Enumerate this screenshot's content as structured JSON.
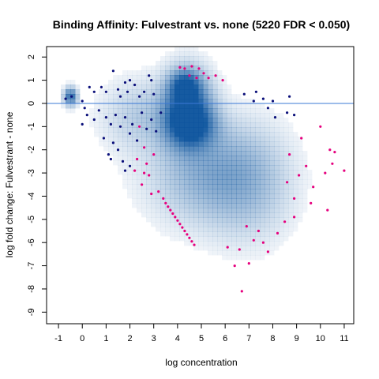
{
  "chart_data": {
    "type": "scatter",
    "title": "Binding Affinity: Fulvestrant vs. none (5220 FDR < 0.050)",
    "xlabel": "log concentration",
    "ylabel": "log fold change: Fulvestrant - none",
    "xlim": [
      -1.5,
      11.4
    ],
    "ylim": [
      -9.5,
      2.45
    ],
    "x_ticks": [
      "-1",
      "0",
      "1",
      "2",
      "3",
      "4",
      "5",
      "6",
      "7",
      "8",
      "9",
      "10",
      "11"
    ],
    "y_ticks": [
      "2",
      "1",
      "0",
      "-1",
      "-2",
      "-3",
      "-4",
      "-5",
      "-6",
      "-7",
      "-8",
      "-9"
    ],
    "reference_line_y": 0,
    "grid": false,
    "legend": "none",
    "colors": {
      "significant": "#e6007e",
      "non_significant": "#0a0f7a",
      "density": "#08519c",
      "reference_line": "#3a78d6"
    },
    "density_blobs": [
      {
        "x": 4.4,
        "y": -0.2,
        "sx": 0.65,
        "sy": 1.0,
        "w": 1.0
      },
      {
        "x": 4.3,
        "y": 0.8,
        "sx": 0.4,
        "sy": 0.4,
        "w": 0.6
      },
      {
        "x": 4.6,
        "y": -1.0,
        "sx": 0.7,
        "sy": 0.6,
        "w": 0.55
      },
      {
        "x": -0.5,
        "y": 0.3,
        "sx": 0.18,
        "sy": 0.25,
        "w": 0.8
      },
      {
        "x": 5.3,
        "y": -3.0,
        "sx": 1.6,
        "sy": 1.4,
        "w": 0.35
      },
      {
        "x": 2.5,
        "y": -0.5,
        "sx": 1.1,
        "sy": 1.0,
        "w": 0.2
      },
      {
        "x": 7.0,
        "y": -3.5,
        "sx": 1.2,
        "sy": 1.6,
        "w": 0.2
      }
    ],
    "series": [
      {
        "name": "",
        "color": "#e6007e",
        "points": [
          [
            4.1,
            1.55
          ],
          [
            4.3,
            1.5
          ],
          [
            4.6,
            1.6
          ],
          [
            4.9,
            1.5
          ],
          [
            5.1,
            1.3
          ],
          [
            5.3,
            1.1
          ],
          [
            4.8,
            1.1
          ],
          [
            5.6,
            1.2
          ],
          [
            5.9,
            1.0
          ],
          [
            4.5,
            1.2
          ],
          [
            3.2,
            -3.8
          ],
          [
            3.4,
            -4.1
          ],
          [
            3.5,
            -4.3
          ],
          [
            3.7,
            -4.6
          ],
          [
            3.9,
            -4.9
          ],
          [
            4.1,
            -5.2
          ],
          [
            4.3,
            -5.5
          ],
          [
            4.5,
            -5.8
          ],
          [
            4.7,
            -6.1
          ],
          [
            3.6,
            -4.45
          ],
          [
            3.8,
            -4.75
          ],
          [
            4.0,
            -5.05
          ],
          [
            4.2,
            -5.35
          ],
          [
            4.4,
            -5.65
          ],
          [
            4.6,
            -5.95
          ],
          [
            2.4,
            -1.0
          ],
          [
            2.6,
            -1.9
          ],
          [
            2.3,
            -2.4
          ],
          [
            2.2,
            -2.9
          ],
          [
            2.8,
            -3.1
          ],
          [
            2.5,
            -3.5
          ],
          [
            2.7,
            -2.6
          ],
          [
            2.9,
            -3.9
          ],
          [
            3.0,
            -2.2
          ],
          [
            2.6,
            -3.0
          ],
          [
            6.9,
            -5.3
          ],
          [
            7.2,
            -5.9
          ],
          [
            6.1,
            -6.2
          ],
          [
            6.6,
            -6.3
          ],
          [
            7.0,
            -6.9
          ],
          [
            7.8,
            -6.4
          ],
          [
            6.4,
            -7.0
          ],
          [
            6.7,
            -8.1
          ],
          [
            7.4,
            -5.5
          ],
          [
            7.6,
            -6.0
          ],
          [
            8.6,
            -3.4
          ],
          [
            8.9,
            -4.1
          ],
          [
            9.1,
            -3.1
          ],
          [
            9.4,
            -2.7
          ],
          [
            9.7,
            -3.6
          ],
          [
            9.6,
            -4.3
          ],
          [
            10.2,
            -3.0
          ],
          [
            10.3,
            -4.6
          ],
          [
            10.5,
            -2.6
          ],
          [
            10.0,
            -1.0
          ],
          [
            10.6,
            -2.1
          ],
          [
            11.0,
            -2.9
          ],
          [
            10.4,
            -2.0
          ],
          [
            8.7,
            -2.2
          ],
          [
            9.2,
            -1.5
          ],
          [
            8.5,
            -5.1
          ],
          [
            8.2,
            -5.6
          ],
          [
            8.9,
            -4.9
          ]
        ]
      },
      {
        "name": "",
        "color": "#0a0f7a",
        "points": [
          [
            -0.7,
            0.2
          ],
          [
            -0.45,
            0.3
          ],
          [
            0.0,
            0.1
          ],
          [
            0.1,
            -0.2
          ],
          [
            0.3,
            0.7
          ],
          [
            0.5,
            0.5
          ],
          [
            0.8,
            0.7
          ],
          [
            1.0,
            0.5
          ],
          [
            1.3,
            1.4
          ],
          [
            1.5,
            0.6
          ],
          [
            1.6,
            0.3
          ],
          [
            1.8,
            0.9
          ],
          [
            2.0,
            1.0
          ],
          [
            2.2,
            0.8
          ],
          [
            2.4,
            0.3
          ],
          [
            2.6,
            0.5
          ],
          [
            2.8,
            1.2
          ],
          [
            3.0,
            0.4
          ],
          [
            2.9,
            1.0
          ],
          [
            1.9,
            0.5
          ],
          [
            0.0,
            -0.9
          ],
          [
            0.2,
            -0.5
          ],
          [
            0.5,
            -0.7
          ],
          [
            0.7,
            -0.3
          ],
          [
            1.0,
            -0.6
          ],
          [
            1.2,
            -0.9
          ],
          [
            1.4,
            -0.5
          ],
          [
            1.6,
            -1.0
          ],
          [
            1.8,
            -0.6
          ],
          [
            2.0,
            -1.3
          ],
          [
            2.1,
            -0.9
          ],
          [
            2.3,
            -1.6
          ],
          [
            2.5,
            -0.4
          ],
          [
            2.7,
            -1.1
          ],
          [
            2.9,
            -0.7
          ],
          [
            3.1,
            -1.2
          ],
          [
            3.3,
            -0.4
          ],
          [
            1.3,
            -1.7
          ],
          [
            1.1,
            -2.2
          ],
          [
            0.9,
            -1.5
          ],
          [
            1.5,
            -2.0
          ],
          [
            1.2,
            -2.4
          ],
          [
            1.7,
            -2.5
          ],
          [
            2.0,
            -2.7
          ],
          [
            1.8,
            -2.9
          ],
          [
            7.2,
            0.1
          ],
          [
            7.6,
            0.2
          ],
          [
            7.8,
            -0.2
          ],
          [
            8.1,
            -0.6
          ],
          [
            8.6,
            -0.4
          ],
          [
            8.7,
            0.3
          ],
          [
            8.9,
            -0.5
          ],
          [
            7.3,
            0.5
          ],
          [
            6.8,
            0.4
          ],
          [
            8.0,
            0.1
          ]
        ]
      }
    ]
  }
}
